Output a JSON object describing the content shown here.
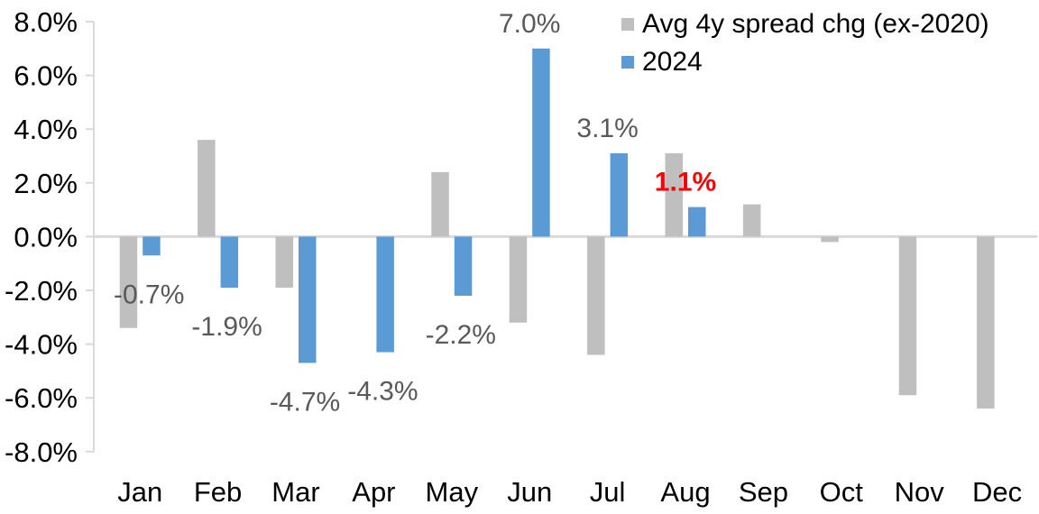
{
  "chart_data": {
    "type": "bar",
    "title": "",
    "categories": [
      "Jan",
      "Feb",
      "Mar",
      "Apr",
      "May",
      "Jun",
      "Jul",
      "Aug",
      "Sep",
      "Oct",
      "Nov",
      "Dec"
    ],
    "series": [
      {
        "name": "Avg 4y spread chg (ex-2020)",
        "color": "#BFBFBF",
        "values": [
          -3.4,
          3.6,
          -1.9,
          0.0,
          2.4,
          -3.2,
          -4.4,
          3.1,
          1.2,
          -0.2,
          -5.9,
          -6.4
        ]
      },
      {
        "name": "2024",
        "color": "#5B9BD5",
        "values": [
          -0.7,
          -1.9,
          -4.7,
          -4.3,
          -2.2,
          7.0,
          3.1,
          1.1,
          null,
          null,
          null,
          null
        ]
      }
    ],
    "data_labels": [
      {
        "index": 0,
        "text": "-0.7%",
        "color": "#595959",
        "bold": false
      },
      {
        "index": 1,
        "text": "-1.9%",
        "color": "#595959",
        "bold": false
      },
      {
        "index": 2,
        "text": "-4.7%",
        "color": "#595959",
        "bold": false
      },
      {
        "index": 3,
        "text": "-4.3%",
        "color": "#595959",
        "bold": false
      },
      {
        "index": 4,
        "text": "-2.2%",
        "color": "#595959",
        "bold": false
      },
      {
        "index": 5,
        "text": "7.0%",
        "color": "#595959",
        "bold": false
      },
      {
        "index": 6,
        "text": "3.1%",
        "color": "#595959",
        "bold": false
      },
      {
        "index": 7,
        "text": "1.1%",
        "color": "#FF0000",
        "bold": true
      }
    ],
    "y_axis": {
      "min": -8,
      "max": 8,
      "step": 2,
      "tick_labels": [
        "8.0%",
        "6.0%",
        "4.0%",
        "2.0%",
        "0.0%",
        "-2.0%",
        "-4.0%",
        "-6.0%",
        "-8.0%"
      ]
    },
    "legend": {
      "position": "top-right",
      "entries": [
        {
          "label": "Avg 4y spread chg (ex-2020)",
          "color": "#BFBFBF"
        },
        {
          "label": "2024",
          "color": "#5B9BD5"
        }
      ]
    },
    "grid": false,
    "colors": {
      "axis_line": "#D9D9D9",
      "axis_text": "#000000",
      "data_label": "#595959",
      "highlight_label": "#FF0000",
      "series_avg": "#BFBFBF",
      "series_2024": "#5B9BD5"
    }
  }
}
